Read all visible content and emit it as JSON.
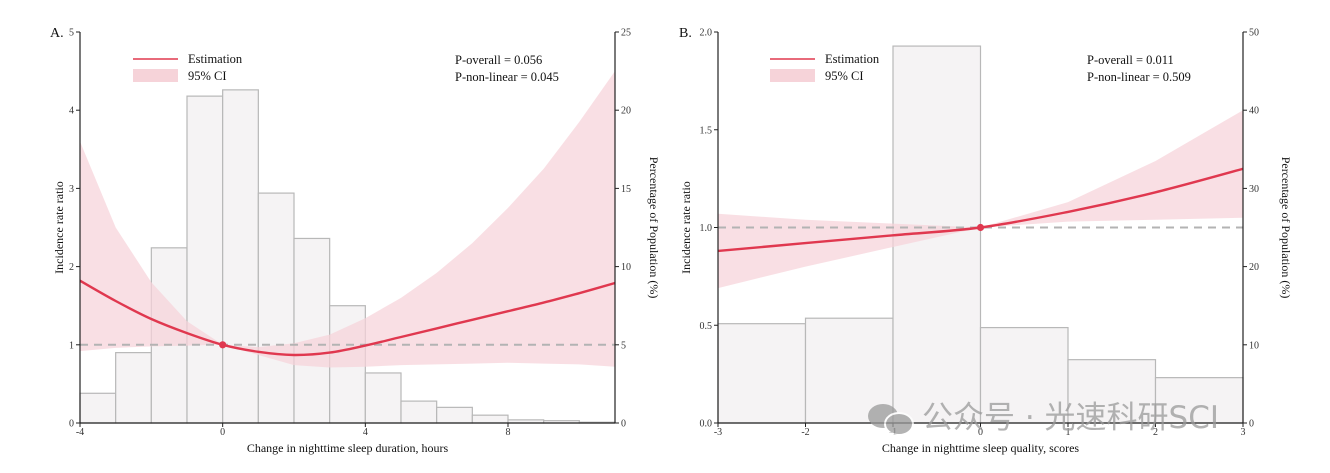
{
  "colors": {
    "estimate": "#e0384f",
    "ci_fill": "#f6d3d9",
    "bar_fill": "#f5f3f4",
    "bar_stroke": "#b8b8b8",
    "reference": "#b3b3b3"
  },
  "watermark": {
    "icon": "wechat-icon",
    "text": "公众号 · 光速科研SCI"
  },
  "chart_data": [
    {
      "type": "line",
      "panel": "A.",
      "xlabel": "Change in nighttime sleep duration, hours",
      "ylabel": "Incidence rate ratio",
      "ylabel2": "Percentage of Population (%)",
      "xlim": [
        -4,
        11
      ],
      "ylim": [
        0,
        5
      ],
      "y2lim": [
        0,
        25
      ],
      "xticks": [
        "-4",
        "0",
        "4",
        "8"
      ],
      "xtick_values": [
        -4,
        0,
        4,
        8
      ],
      "yticks": [
        "0",
        "1",
        "2",
        "3",
        "4",
        "5"
      ],
      "ytick_values": [
        0,
        1,
        2,
        3,
        4,
        5
      ],
      "y2ticks": [
        "0",
        "5",
        "10",
        "15",
        "20",
        "25"
      ],
      "y2tick_values": [
        0,
        5,
        10,
        15,
        20,
        25
      ],
      "legend": [
        "Estimation",
        "95% CI"
      ],
      "legend_position": "top-left",
      "stats": [
        "P-overall = 0.056",
        "P-non-linear = 0.045"
      ],
      "reference_y": 1,
      "knot": [
        0,
        1
      ],
      "histogram": {
        "bins": [
          [
            -4,
            -3
          ],
          [
            -3,
            -2
          ],
          [
            -2,
            -1
          ],
          [
            -1,
            0
          ],
          [
            0,
            1
          ],
          [
            1,
            2
          ],
          [
            2,
            3
          ],
          [
            3,
            4
          ],
          [
            4,
            5
          ],
          [
            5,
            6
          ],
          [
            6,
            7
          ],
          [
            7,
            8
          ],
          [
            8,
            9
          ],
          [
            9,
            10
          ],
          [
            10,
            11
          ]
        ],
        "percent": [
          1.9,
          4.5,
          11.2,
          20.9,
          21.3,
          14.7,
          11.8,
          7.5,
          3.2,
          1.4,
          1.0,
          0.5,
          0.2,
          0.15,
          0.05
        ]
      },
      "estimate": {
        "x": [
          -4,
          -3,
          -2,
          -1,
          0,
          1,
          2,
          3,
          4,
          5,
          6,
          7,
          8,
          9,
          10,
          11
        ],
        "y": [
          1.82,
          1.56,
          1.33,
          1.15,
          1.0,
          0.91,
          0.87,
          0.9,
          0.99,
          1.1,
          1.21,
          1.32,
          1.43,
          1.54,
          1.66,
          1.79
        ]
      },
      "ci_lower": {
        "x": [
          -4,
          -3,
          -2,
          -1,
          0,
          1,
          2,
          3,
          4,
          5,
          6,
          7,
          8,
          9,
          10,
          11
        ],
        "y": [
          0.92,
          0.96,
          0.98,
          0.99,
          1.0,
          0.87,
          0.74,
          0.71,
          0.72,
          0.74,
          0.75,
          0.76,
          0.77,
          0.76,
          0.75,
          0.72
        ]
      },
      "ci_upper": {
        "x": [
          -4,
          -3,
          -2,
          -1,
          0,
          1,
          2,
          3,
          4,
          5,
          6,
          7,
          8,
          9,
          10,
          11
        ],
        "y": [
          3.6,
          2.5,
          1.8,
          1.3,
          1.0,
          0.97,
          1.02,
          1.13,
          1.34,
          1.6,
          1.92,
          2.3,
          2.75,
          3.25,
          3.85,
          4.5
        ]
      }
    },
    {
      "type": "line",
      "panel": "B.",
      "xlabel": "Change in nighttime sleep quality, scores",
      "ylabel": "Incidence rate ratio",
      "ylabel2": "Percentage of Population (%)",
      "xlim": [
        -3,
        3
      ],
      "ylim": [
        0,
        2
      ],
      "y2lim": [
        0,
        50
      ],
      "xticks": [
        "-3",
        "-2",
        "-1",
        "0",
        "1",
        "2",
        "3"
      ],
      "xtick_values": [
        -3,
        -2,
        -1,
        0,
        1,
        2,
        3
      ],
      "yticks": [
        "0.0",
        "0.5",
        "1.0",
        "1.5",
        "2.0"
      ],
      "ytick_values": [
        0,
        0.5,
        1.0,
        1.5,
        2.0
      ],
      "y2ticks": [
        "0",
        "10",
        "20",
        "30",
        "40",
        "50"
      ],
      "y2tick_values": [
        0,
        10,
        20,
        30,
        40,
        50
      ],
      "legend": [
        "Estimation",
        "95% CI"
      ],
      "legend_position": "top-left",
      "stats": [
        "P-overall = 0.011",
        "P-non-linear = 0.509"
      ],
      "reference_y": 1,
      "knot": [
        0,
        1
      ],
      "histogram": {
        "bins": [
          [
            -3,
            -2
          ],
          [
            -2,
            -1
          ],
          [
            -1,
            0
          ],
          [
            0,
            1
          ],
          [
            1,
            2
          ],
          [
            2,
            3
          ]
        ],
        "percent": [
          12.7,
          13.4,
          48.2,
          12.2,
          8.1,
          5.8
        ]
      },
      "estimate": {
        "x": [
          -3,
          -2,
          -1,
          0,
          1,
          2,
          3
        ],
        "y": [
          0.88,
          0.92,
          0.96,
          1.0,
          1.08,
          1.18,
          1.3
        ]
      },
      "ci_lower": {
        "x": [
          -3,
          -2,
          -1,
          0,
          1,
          2,
          3
        ],
        "y": [
          0.69,
          0.8,
          0.9,
          1.0,
          1.03,
          1.04,
          1.05
        ]
      },
      "ci_upper": {
        "x": [
          -3,
          -2,
          -1,
          0,
          1,
          2,
          3
        ],
        "y": [
          1.07,
          1.04,
          1.02,
          1.0,
          1.13,
          1.34,
          1.6
        ]
      }
    }
  ]
}
